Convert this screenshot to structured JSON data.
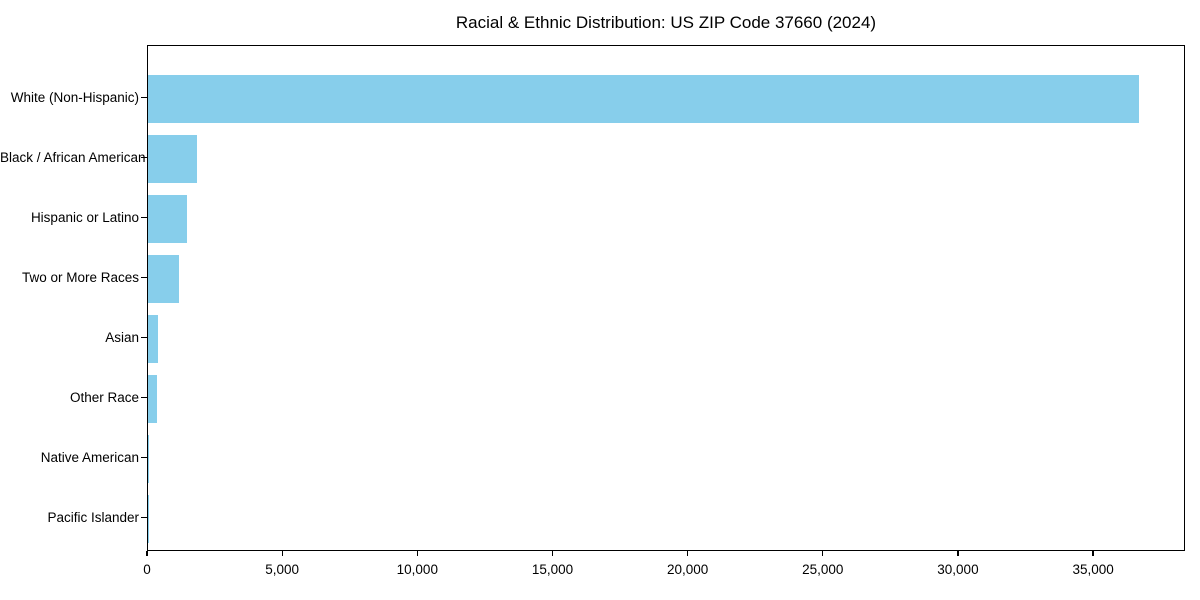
{
  "figure": {
    "background_color": "#ffffff",
    "text_color": "#000000",
    "spine_color": "#000000"
  },
  "chart_data": {
    "type": "bar",
    "orientation": "horizontal",
    "title": "Racial & Ethnic Distribution: US ZIP Code 37660 (2024)",
    "categories": [
      "White (Non-Hispanic)",
      "Black / African American",
      "Hispanic or Latino",
      "Two or More Races",
      "Asian",
      "Other Race",
      "Native American",
      "Pacific Islander"
    ],
    "values": [
      36650,
      1830,
      1425,
      1130,
      370,
      325,
      50,
      10
    ],
    "bar_color": "#87CEEB",
    "xlabel": "",
    "ylabel": "",
    "xlim": [
      0,
      38400
    ],
    "x_ticks": [
      0,
      5000,
      10000,
      15000,
      20000,
      25000,
      30000,
      35000
    ],
    "x_tick_labels": [
      "0",
      "5,000",
      "10,000",
      "15,000",
      "20,000",
      "25,000",
      "30,000",
      "35,000"
    ],
    "grid": false,
    "legend": "none"
  }
}
